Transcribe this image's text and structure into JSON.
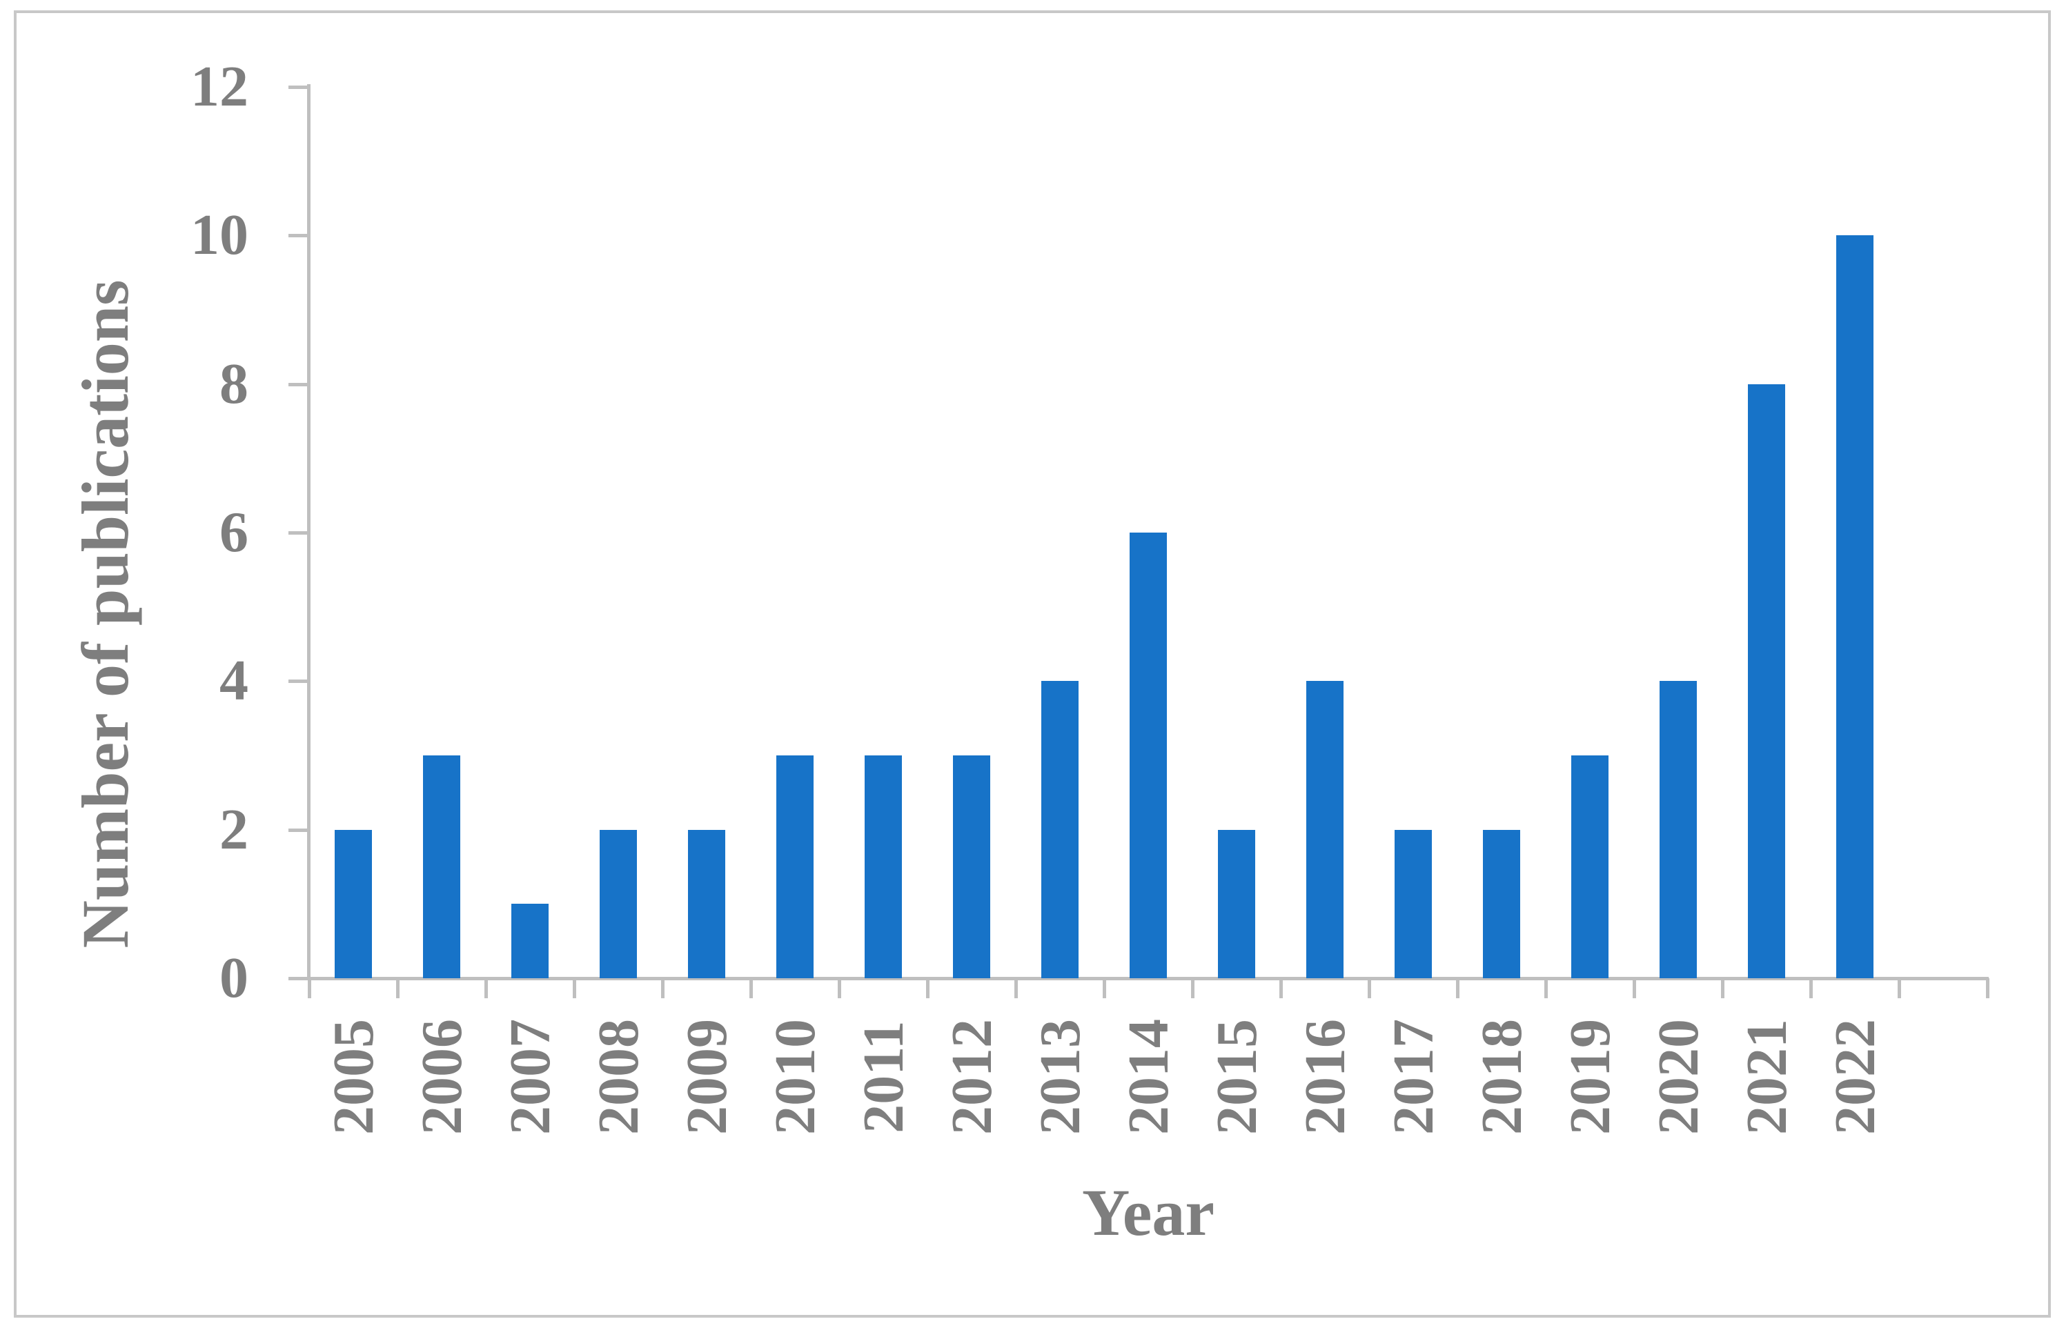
{
  "chart_data": {
    "type": "bar",
    "title": "",
    "xlabel": "Year",
    "ylabel": "Number of publications",
    "categories": [
      "2005",
      "2006",
      "2007",
      "2008",
      "2009",
      "2010",
      "2011",
      "2012",
      "2013",
      "2014",
      "2015",
      "2016",
      "2017",
      "2018",
      "2019",
      "2020",
      "2021",
      "2022"
    ],
    "values": [
      2,
      3,
      1,
      2,
      2,
      3,
      3,
      3,
      4,
      6,
      2,
      4,
      2,
      2,
      3,
      4,
      8,
      10
    ],
    "ylim": [
      0,
      12
    ],
    "ytick_step": 2,
    "yticks": [
      0,
      2,
      4,
      6,
      8,
      10,
      12
    ],
    "grid": false,
    "legend": null,
    "xtick_rotation_deg": -90,
    "bar_color": "#1773C8",
    "axis_color": "#BFBFBF",
    "text_color": "#7E7E7E",
    "border_color": "#C8C8C8"
  }
}
